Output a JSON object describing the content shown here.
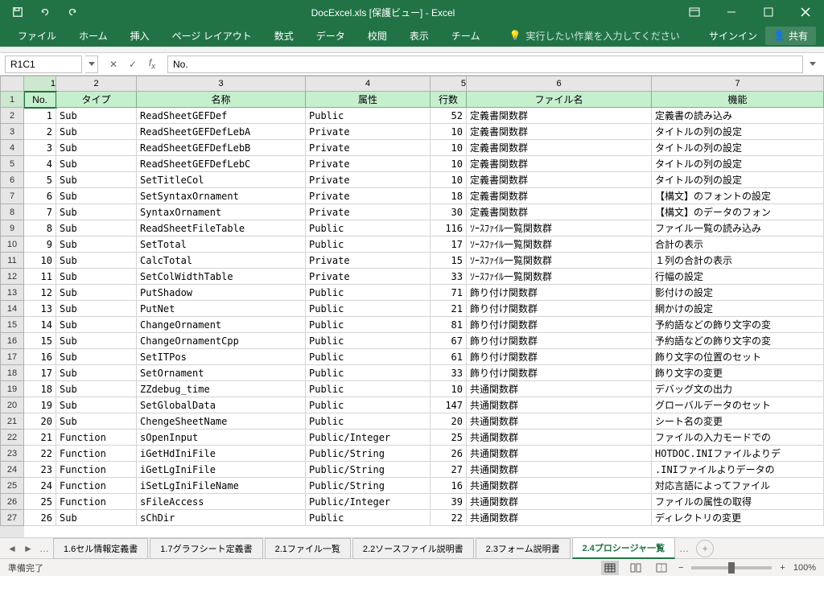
{
  "window": {
    "title": "DocExcel.xls  [保護ビュー] - Excel",
    "signin": "サインイン",
    "share": "共有"
  },
  "ribbon": {
    "tabs": [
      "ファイル",
      "ホーム",
      "挿入",
      "ページ レイアウト",
      "数式",
      "データ",
      "校閲",
      "表示",
      "チーム"
    ],
    "tell_me": "実行したい作業を入力してください"
  },
  "formula_bar": {
    "name_box": "R1C1",
    "formula": "No."
  },
  "columns": {
    "refs": [
      "1",
      "2",
      "3",
      "4",
      "5",
      "6",
      "7"
    ],
    "widths": [
      40,
      100,
      210,
      155,
      45,
      230,
      214
    ],
    "headers": [
      "No.",
      "タイプ",
      "名称",
      "属性",
      "行数",
      "ファイル名",
      "機能"
    ]
  },
  "rows": [
    {
      "n": "1",
      "t": "Sub",
      "name": "ReadSheetGEFDef",
      "attr": "Public",
      "ln": "52",
      "f": "定義書関数群",
      "k": "定義書の読み込み"
    },
    {
      "n": "2",
      "t": "Sub",
      "name": "ReadSheetGEFDefLebA",
      "attr": "Private",
      "ln": "10",
      "f": "定義書関数群",
      "k": "タイトルの列の設定"
    },
    {
      "n": "3",
      "t": "Sub",
      "name": "ReadSheetGEFDefLebB",
      "attr": "Private",
      "ln": "10",
      "f": "定義書関数群",
      "k": "タイトルの列の設定"
    },
    {
      "n": "4",
      "t": "Sub",
      "name": "ReadSheetGEFDefLebC",
      "attr": "Private",
      "ln": "10",
      "f": "定義書関数群",
      "k": "タイトルの列の設定"
    },
    {
      "n": "5",
      "t": "Sub",
      "name": "SetTitleCol",
      "attr": "Private",
      "ln": "10",
      "f": "定義書関数群",
      "k": "タイトルの列の設定"
    },
    {
      "n": "6",
      "t": "Sub",
      "name": "SetSyntaxOrnament",
      "attr": "Private",
      "ln": "18",
      "f": "定義書関数群",
      "k": "【構文】のフォントの設定"
    },
    {
      "n": "7",
      "t": "Sub",
      "name": "SyntaxOrnament",
      "attr": "Private",
      "ln": "30",
      "f": "定義書関数群",
      "k": "【構文】のデータのフォン"
    },
    {
      "n": "8",
      "t": "Sub",
      "name": "ReadSheetFileTable",
      "attr": "Public",
      "ln": "116",
      "f": "ｿｰｽﾌｧｲﾙ一覧関数群",
      "k": "ファイル一覧の読み込み"
    },
    {
      "n": "9",
      "t": "Sub",
      "name": "SetTotal",
      "attr": "Public",
      "ln": "17",
      "f": "ｿｰｽﾌｧｲﾙ一覧関数群",
      "k": "合計の表示"
    },
    {
      "n": "10",
      "t": "Sub",
      "name": "CalcTotal",
      "attr": "Private",
      "ln": "15",
      "f": "ｿｰｽﾌｧｲﾙ一覧関数群",
      "k": "１列の合計の表示"
    },
    {
      "n": "11",
      "t": "Sub",
      "name": "SetColWidthTable",
      "attr": "Private",
      "ln": "33",
      "f": "ｿｰｽﾌｧｲﾙ一覧関数群",
      "k": "行幅の設定"
    },
    {
      "n": "12",
      "t": "Sub",
      "name": "PutShadow",
      "attr": "Public",
      "ln": "71",
      "f": "飾り付け関数群",
      "k": "影付けの設定"
    },
    {
      "n": "13",
      "t": "Sub",
      "name": "PutNet",
      "attr": "Public",
      "ln": "21",
      "f": "飾り付け関数群",
      "k": "網かけの設定"
    },
    {
      "n": "14",
      "t": "Sub",
      "name": "ChangeOrnament",
      "attr": "Public",
      "ln": "81",
      "f": "飾り付け関数群",
      "k": "予約語などの飾り文字の変"
    },
    {
      "n": "15",
      "t": "Sub",
      "name": "ChangeOrnamentCpp",
      "attr": "Public",
      "ln": "67",
      "f": "飾り付け関数群",
      "k": "予約語などの飾り文字の変"
    },
    {
      "n": "16",
      "t": "Sub",
      "name": "SetITPos",
      "attr": "Public",
      "ln": "61",
      "f": "飾り付け関数群",
      "k": "飾り文字の位置のセット"
    },
    {
      "n": "17",
      "t": "Sub",
      "name": "SetOrnament",
      "attr": "Public",
      "ln": "33",
      "f": "飾り付け関数群",
      "k": "飾り文字の変更"
    },
    {
      "n": "18",
      "t": "Sub",
      "name": "ZZdebug_time",
      "attr": "Public",
      "ln": "10",
      "f": "共通関数群",
      "k": "デバッグ文の出力"
    },
    {
      "n": "19",
      "t": "Sub",
      "name": "SetGlobalData",
      "attr": "Public",
      "ln": "147",
      "f": "共通関数群",
      "k": "グローバルデータのセット"
    },
    {
      "n": "20",
      "t": "Sub",
      "name": "ChengeSheetName",
      "attr": "Public",
      "ln": "20",
      "f": "共通関数群",
      "k": "シート名の変更"
    },
    {
      "n": "21",
      "t": "Function",
      "name": "sOpenInput",
      "attr": "Public/Integer",
      "ln": "25",
      "f": "共通関数群",
      "k": "ファイルの入力モードでの"
    },
    {
      "n": "22",
      "t": "Function",
      "name": "iGetHdIniFile",
      "attr": "Public/String",
      "ln": "26",
      "f": "共通関数群",
      "k": "HOTDOC.INIファイルよりデ"
    },
    {
      "n": "23",
      "t": "Function",
      "name": "iGetLgIniFile",
      "attr": "Public/String",
      "ln": "27",
      "f": "共通関数群",
      "k": ".INIファイルよりデータの"
    },
    {
      "n": "24",
      "t": "Function",
      "name": "iSetLgIniFileName",
      "attr": "Public/String",
      "ln": "16",
      "f": "共通関数群",
      "k": "対応言語によってファイル"
    },
    {
      "n": "25",
      "t": "Function",
      "name": "sFileAccess",
      "attr": "Public/Integer",
      "ln": "39",
      "f": "共通関数群",
      "k": "ファイルの属性の取得"
    },
    {
      "n": "26",
      "t": "Sub",
      "name": "sChDir",
      "attr": "Public",
      "ln": "22",
      "f": "共通関数群",
      "k": "ディレクトリの変更"
    }
  ],
  "sheet_tabs": {
    "items": [
      "1.6セル情報定義書",
      "1.7グラフシート定義書",
      "2.1ファイル一覧",
      "2.2ソースファイル説明書",
      "2.3フォーム説明書",
      "2.4プロシージャ一覧"
    ],
    "active": 5
  },
  "status": {
    "ready": "準備完了",
    "zoom": "100%"
  },
  "colors": {
    "primary": "#217346",
    "header_fill": "#c6efce"
  }
}
